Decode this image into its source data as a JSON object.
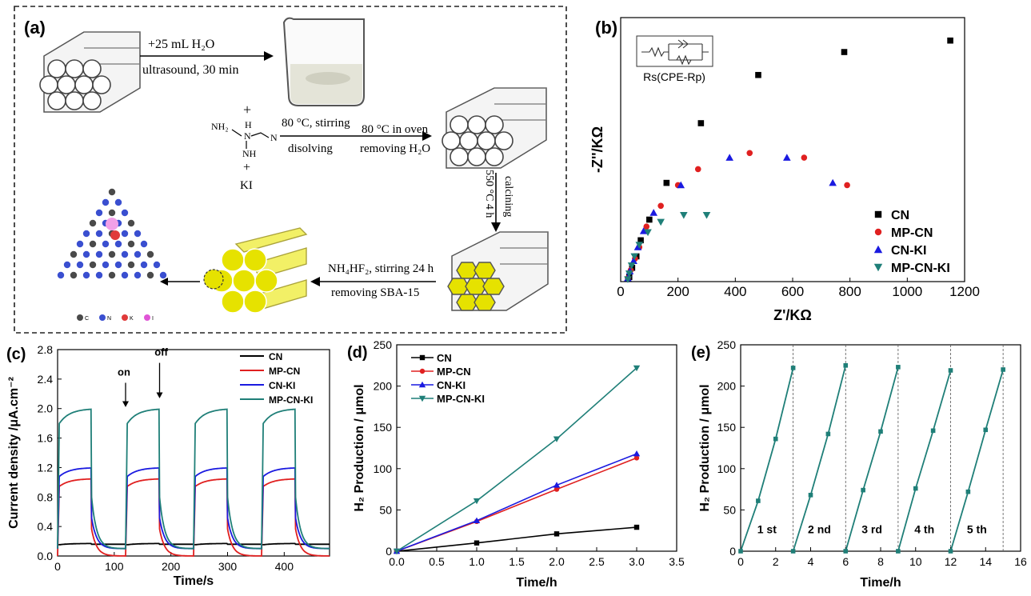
{
  "scheme": {
    "panel_label": "(a)",
    "step1_top": "+25 mL H₂O",
    "step1_bottom": "ultrasound, 30 min",
    "plus1": "+",
    "plus2": "+",
    "reagent_nh2": "NH₂",
    "reagent_h": "H",
    "reagent_nh": "NH",
    "reagent_n1": "N",
    "reagent_n2": "N",
    "reagent_ki": "KI",
    "step2_top": "80 °C, stirring",
    "step2_bottom": "disolving",
    "step3_top": "80 °C in oven",
    "step3_bottom": "removing H₂O",
    "step4_left": "550 °C 4 h",
    "step4_right": "calcining",
    "step5_top": "NH₄HF₂, stirring 24 h",
    "step5_bottom": "removing SBA-15",
    "atom_legend": [
      {
        "symbol": "C",
        "color": "#4a4a4a"
      },
      {
        "symbol": "N",
        "color": "#3a4fd0"
      },
      {
        "symbol": "K",
        "color": "#e03a3a"
      },
      {
        "symbol": "I",
        "color": "#e055d6"
      }
    ]
  },
  "chart_data": [
    {
      "panel": "(b)",
      "type": "scatter",
      "xlabel": "Z'/KΩ",
      "ylabel": "-Z''/KΩ",
      "xlim": [
        0,
        1200
      ],
      "ylim": [
        0,
        1150
      ],
      "xticks": [
        0,
        200,
        400,
        600,
        800,
        1000,
        1200
      ],
      "yticks_shown": false,
      "inset_label": "Rs(CPE-Rp)",
      "legend_position": "bottom-right",
      "series": [
        {
          "name": "CN",
          "color": "#000000",
          "marker": "square",
          "x": [
            30,
            40,
            55,
            70,
            100,
            160,
            280,
            480,
            780,
            1150
          ],
          "y": [
            20,
            60,
            110,
            180,
            270,
            430,
            690,
            900,
            1000,
            1050
          ]
        },
        {
          "name": "MP-CN",
          "color": "#e02020",
          "marker": "circle",
          "x": [
            25,
            35,
            50,
            65,
            90,
            140,
            200,
            270,
            450,
            640,
            790
          ],
          "y": [
            15,
            50,
            100,
            150,
            240,
            330,
            420,
            490,
            560,
            540,
            420
          ]
        },
        {
          "name": "CN-KI",
          "color": "#1a1ae0",
          "marker": "triangle-up",
          "x": [
            25,
            32,
            45,
            60,
            80,
            115,
            210,
            380,
            580,
            740
          ],
          "y": [
            15,
            45,
            90,
            150,
            220,
            300,
            420,
            540,
            540,
            430
          ]
        },
        {
          "name": "MP-CN-KI",
          "color": "#1f7f78",
          "marker": "triangle-down",
          "x": [
            25,
            30,
            38,
            48,
            65,
            95,
            140,
            220,
            300
          ],
          "y": [
            10,
            35,
            70,
            110,
            160,
            215,
            260,
            290,
            290
          ]
        }
      ]
    },
    {
      "panel": "(c)",
      "type": "line",
      "xlabel": "Time/s",
      "ylabel": "Current density /μA.cm⁻²",
      "xlim": [
        0,
        480
      ],
      "ylim": [
        0,
        2.8
      ],
      "xticks": [
        0,
        100,
        200,
        300,
        400
      ],
      "yticks": [
        0.0,
        0.4,
        0.8,
        1.2,
        1.6,
        2.0,
        2.4,
        2.8
      ],
      "legend_position": "top-right",
      "annotations": [
        "on",
        "off"
      ],
      "on_intervals": [
        [
          0,
          60
        ],
        [
          120,
          180
        ],
        [
          240,
          300
        ],
        [
          360,
          420
        ]
      ],
      "series": [
        {
          "name": "CN",
          "color": "#000000",
          "on_value": 0.17,
          "off_value": 0.16
        },
        {
          "name": "MP-CN",
          "color": "#e02020",
          "on_value": 1.05,
          "off_value": 0.0
        },
        {
          "name": "CN-KI",
          "color": "#1a1ae0",
          "on_value": 1.2,
          "off_value": 0.1
        },
        {
          "name": "MP-CN-KI",
          "color": "#1f7f78",
          "on_value": 2.0,
          "off_value": 0.1
        }
      ]
    },
    {
      "panel": "(d)",
      "type": "line",
      "xlabel": "Time/h",
      "ylabel": "H₂ Production / μmol",
      "xlim": [
        0,
        3.5
      ],
      "ylim": [
        0,
        250
      ],
      "xticks": [
        0.0,
        0.5,
        1.0,
        1.5,
        2.0,
        2.5,
        3.0,
        3.5
      ],
      "yticks": [
        0,
        50,
        100,
        150,
        200,
        250
      ],
      "legend_position": "top-left",
      "x": [
        0,
        1,
        2,
        3
      ],
      "series": [
        {
          "name": "CN",
          "color": "#000000",
          "marker": "square",
          "values": [
            0,
            10,
            21,
            29
          ]
        },
        {
          "name": "MP-CN",
          "color": "#e02020",
          "marker": "circle",
          "values": [
            0,
            36,
            75,
            113
          ]
        },
        {
          "name": "CN-KI",
          "color": "#1a1ae0",
          "marker": "triangle-up",
          "values": [
            0,
            37,
            80,
            118
          ]
        },
        {
          "name": "MP-CN-KI",
          "color": "#1f7f78",
          "marker": "triangle-down",
          "values": [
            0,
            61,
            136,
            222
          ]
        }
      ]
    },
    {
      "panel": "(e)",
      "type": "line",
      "xlabel": "Time/h",
      "ylabel": "H₂ Production / μmol",
      "xlim": [
        0,
        16
      ],
      "ylim": [
        0,
        250
      ],
      "xticks": [
        0,
        2,
        4,
        6,
        8,
        10,
        12,
        14,
        16
      ],
      "yticks": [
        0,
        50,
        100,
        150,
        200,
        250
      ],
      "color": "#1f7f78",
      "cycle_dividers": [
        3,
        6,
        9,
        12,
        15
      ],
      "cycles": [
        {
          "label": "1 st",
          "x": [
            0,
            1,
            2,
            3
          ],
          "values": [
            0,
            61,
            136,
            222
          ]
        },
        {
          "label": "2 nd",
          "x": [
            3,
            4,
            5,
            6
          ],
          "values": [
            0,
            68,
            142,
            225
          ]
        },
        {
          "label": "3 rd",
          "x": [
            6,
            7,
            8,
            9
          ],
          "values": [
            0,
            74,
            145,
            223
          ]
        },
        {
          "label": "4 th",
          "x": [
            9,
            10,
            11,
            12
          ],
          "values": [
            0,
            76,
            146,
            219
          ]
        },
        {
          "label": "5 th",
          "x": [
            12,
            13,
            14,
            15
          ],
          "values": [
            0,
            72,
            147,
            220
          ]
        }
      ]
    }
  ]
}
